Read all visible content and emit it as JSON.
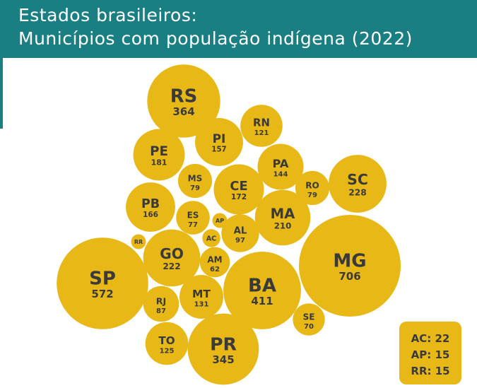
{
  "header": {
    "title_line1": "Estados brasileiros:",
    "title_line2": "Municípios com população indígena (2022)"
  },
  "colors": {
    "header": "#1a7f83",
    "bubble": "#e8b817",
    "text": "#3a3a3a"
  },
  "chart_data": {
    "type": "bubble",
    "title": "Estados brasileiros: Municípios com população indígena (2022)",
    "series": [
      {
        "label": "RS",
        "value": 364
      },
      {
        "label": "RN",
        "value": 121
      },
      {
        "label": "PI",
        "value": 157
      },
      {
        "label": "PE",
        "value": 181
      },
      {
        "label": "PA",
        "value": 144
      },
      {
        "label": "SC",
        "value": 228
      },
      {
        "label": "MS",
        "value": 79
      },
      {
        "label": "CE",
        "value": 172
      },
      {
        "label": "RO",
        "value": 79
      },
      {
        "label": "PB",
        "value": 166
      },
      {
        "label": "ES",
        "value": 77
      },
      {
        "label": "MA",
        "value": 210
      },
      {
        "label": "AP",
        "value": 15
      },
      {
        "label": "AL",
        "value": 97
      },
      {
        "label": "AC",
        "value": 22
      },
      {
        "label": "RR",
        "value": 15
      },
      {
        "label": "GO",
        "value": 222
      },
      {
        "label": "AM",
        "value": 62
      },
      {
        "label": "MG",
        "value": 706
      },
      {
        "label": "SP",
        "value": 572
      },
      {
        "label": "BA",
        "value": 411
      },
      {
        "label": "MT",
        "value": 131
      },
      {
        "label": "RJ",
        "value": 87
      },
      {
        "label": "SE",
        "value": 70
      },
      {
        "label": "TO",
        "value": 125
      },
      {
        "label": "PR",
        "value": 345
      }
    ]
  },
  "note": {
    "line1": "AC: 22",
    "line2": "AP: 15",
    "line3": "RR: 15"
  }
}
